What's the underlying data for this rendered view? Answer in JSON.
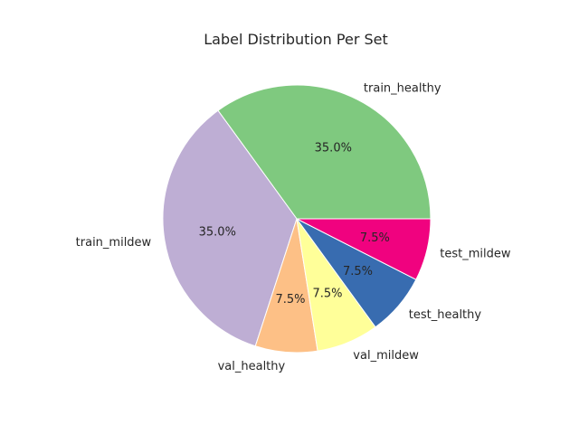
{
  "chart_data": {
    "type": "pie",
    "title": "Label Distribution Per Set",
    "start_angle_deg": 0,
    "direction": "counterclockwise",
    "slices": [
      {
        "label": "train_healthy",
        "value": 35.0,
        "pct_label": "35.0%",
        "color": "#7fc97f"
      },
      {
        "label": "train_mildew",
        "value": 35.0,
        "pct_label": "35.0%",
        "color": "#beaed4"
      },
      {
        "label": "val_healthy",
        "value": 7.5,
        "pct_label": "7.5%",
        "color": "#fdc086"
      },
      {
        "label": "val_mildew",
        "value": 7.5,
        "pct_label": "7.5%",
        "color": "#ffff99"
      },
      {
        "label": "test_healthy",
        "value": 7.5,
        "pct_label": "7.5%",
        "color": "#386cb0"
      },
      {
        "label": "test_mildew",
        "value": 7.5,
        "pct_label": "7.5%",
        "color": "#f0027f"
      }
    ]
  }
}
